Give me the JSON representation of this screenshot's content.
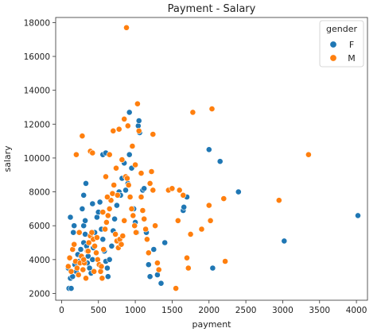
{
  "chart_data": {
    "type": "scatter",
    "title": "Payment - Salary",
    "xlabel": "payment",
    "ylabel": "salary",
    "xlim": [
      -80,
      4150
    ],
    "ylim": [
      1600,
      18300
    ],
    "xticks": [
      0,
      500,
      1000,
      1500,
      2000,
      2500,
      3000,
      3500,
      4000
    ],
    "yticks": [
      2000,
      4000,
      6000,
      8000,
      10000,
      12000,
      14000,
      16000,
      18000
    ],
    "grid": false,
    "legend": {
      "title": "gender",
      "placement": "top-right"
    },
    "colors": {
      "F": "#1f77b4",
      "M": "#ff7f0e"
    },
    "series": [
      {
        "name": "F",
        "points": [
          [
            100,
            2300
          ],
          [
            130,
            2300
          ],
          [
            120,
            2900
          ],
          [
            90,
            3500
          ],
          [
            150,
            3000
          ],
          [
            180,
            3700
          ],
          [
            200,
            3300
          ],
          [
            240,
            3900
          ],
          [
            220,
            4300
          ],
          [
            260,
            4600
          ],
          [
            280,
            4100
          ],
          [
            300,
            5000
          ],
          [
            320,
            5500
          ],
          [
            340,
            4800
          ],
          [
            350,
            3800
          ],
          [
            360,
            4200
          ],
          [
            380,
            3500
          ],
          [
            400,
            3200
          ],
          [
            300,
            6000
          ],
          [
            320,
            6300
          ],
          [
            280,
            7000
          ],
          [
            300,
            7800
          ],
          [
            330,
            8500
          ],
          [
            120,
            6500
          ],
          [
            160,
            5600
          ],
          [
            170,
            6000
          ],
          [
            420,
            4000
          ],
          [
            430,
            4700
          ],
          [
            450,
            5600
          ],
          [
            480,
            6500
          ],
          [
            500,
            6800
          ],
          [
            520,
            7400
          ],
          [
            540,
            5800
          ],
          [
            560,
            5200
          ],
          [
            580,
            4500
          ],
          [
            600,
            3900
          ],
          [
            620,
            3500
          ],
          [
            630,
            3000
          ],
          [
            650,
            4000
          ],
          [
            680,
            4800
          ],
          [
            700,
            5700
          ],
          [
            720,
            6400
          ],
          [
            750,
            7200
          ],
          [
            780,
            8000
          ],
          [
            800,
            7800
          ],
          [
            820,
            8800
          ],
          [
            850,
            9700
          ],
          [
            870,
            8100
          ],
          [
            900,
            8500
          ],
          [
            920,
            10200
          ],
          [
            950,
            9400
          ],
          [
            980,
            7000
          ],
          [
            1000,
            6200
          ],
          [
            1020,
            5600
          ],
          [
            1040,
            11900
          ],
          [
            1050,
            12200
          ],
          [
            1060,
            11500
          ],
          [
            1100,
            8100
          ],
          [
            1120,
            8200
          ],
          [
            1150,
            5600
          ],
          [
            1180,
            3700
          ],
          [
            1200,
            3000
          ],
          [
            1250,
            4600
          ],
          [
            1300,
            3100
          ],
          [
            1350,
            2600
          ],
          [
            1400,
            5000
          ],
          [
            1650,
            6900
          ],
          [
            1700,
            7700
          ],
          [
            2000,
            10500
          ],
          [
            2050,
            3500
          ],
          [
            2150,
            9800
          ],
          [
            2400,
            8000
          ],
          [
            3020,
            5100
          ],
          [
            4020,
            6600
          ],
          [
            920,
            12700
          ],
          [
            560,
            10200
          ],
          [
            600,
            10300
          ],
          [
            480,
            5300
          ],
          [
            420,
            7300
          ],
          [
            1660,
            7100
          ]
        ]
      },
      {
        "name": "M",
        "points": [
          [
            90,
            3600
          ],
          [
            110,
            4100
          ],
          [
            130,
            3300
          ],
          [
            150,
            4600
          ],
          [
            170,
            4900
          ],
          [
            190,
            3900
          ],
          [
            210,
            3500
          ],
          [
            230,
            3100
          ],
          [
            250,
            3800
          ],
          [
            270,
            4200
          ],
          [
            290,
            3400
          ],
          [
            310,
            3800
          ],
          [
            330,
            2900
          ],
          [
            350,
            4500
          ],
          [
            370,
            5000
          ],
          [
            390,
            5400
          ],
          [
            410,
            5600
          ],
          [
            430,
            5200
          ],
          [
            450,
            4800
          ],
          [
            470,
            4400
          ],
          [
            490,
            4000
          ],
          [
            510,
            3700
          ],
          [
            530,
            3300
          ],
          [
            550,
            2900
          ],
          [
            570,
            4600
          ],
          [
            590,
            5800
          ],
          [
            610,
            6200
          ],
          [
            630,
            6600
          ],
          [
            650,
            7000
          ],
          [
            670,
            7500
          ],
          [
            690,
            7900
          ],
          [
            710,
            8400
          ],
          [
            730,
            5500
          ],
          [
            750,
            5100
          ],
          [
            770,
            4700
          ],
          [
            790,
            5200
          ],
          [
            810,
            4900
          ],
          [
            830,
            5400
          ],
          [
            850,
            6300
          ],
          [
            870,
            8900
          ],
          [
            890,
            8800
          ],
          [
            910,
            8400
          ],
          [
            930,
            7700
          ],
          [
            950,
            7000
          ],
          [
            970,
            6600
          ],
          [
            990,
            6000
          ],
          [
            1010,
            5600
          ],
          [
            1030,
            13200
          ],
          [
            1050,
            11600
          ],
          [
            1080,
            7700
          ],
          [
            1100,
            6900
          ],
          [
            1120,
            6400
          ],
          [
            1140,
            5800
          ],
          [
            1160,
            5200
          ],
          [
            1180,
            4400
          ],
          [
            1200,
            8500
          ],
          [
            1220,
            9200
          ],
          [
            1240,
            11400
          ],
          [
            1270,
            6000
          ],
          [
            1300,
            3800
          ],
          [
            1320,
            3400
          ],
          [
            1450,
            8100
          ],
          [
            1500,
            8200
          ],
          [
            1550,
            2300
          ],
          [
            1580,
            6300
          ],
          [
            1600,
            8100
          ],
          [
            1650,
            7800
          ],
          [
            1700,
            4100
          ],
          [
            1720,
            3500
          ],
          [
            1750,
            5500
          ],
          [
            1780,
            12700
          ],
          [
            1900,
            5800
          ],
          [
            2000,
            7200
          ],
          [
            2020,
            6300
          ],
          [
            2040,
            12900
          ],
          [
            2200,
            7600
          ],
          [
            2220,
            3900
          ],
          [
            2950,
            7500
          ],
          [
            3350,
            10200
          ],
          [
            880,
            17700
          ],
          [
            280,
            11300
          ],
          [
            390,
            10400
          ],
          [
            420,
            10300
          ],
          [
            200,
            10200
          ],
          [
            650,
            10200
          ],
          [
            700,
            11600
          ],
          [
            780,
            11700
          ],
          [
            850,
            12300
          ],
          [
            900,
            11900
          ],
          [
            1000,
            9600
          ],
          [
            1080,
            9100
          ],
          [
            960,
            10700
          ],
          [
            1240,
            8100
          ],
          [
            620,
            7700
          ],
          [
            560,
            6800
          ],
          [
            480,
            5300
          ],
          [
            360,
            4500
          ],
          [
            540,
            3600
          ],
          [
            440,
            3300
          ],
          [
            300,
            4000
          ],
          [
            240,
            5600
          ],
          [
            760,
            7800
          ],
          [
            740,
            9400
          ],
          [
            820,
            9900
          ],
          [
            600,
            8900
          ]
        ]
      }
    ]
  }
}
